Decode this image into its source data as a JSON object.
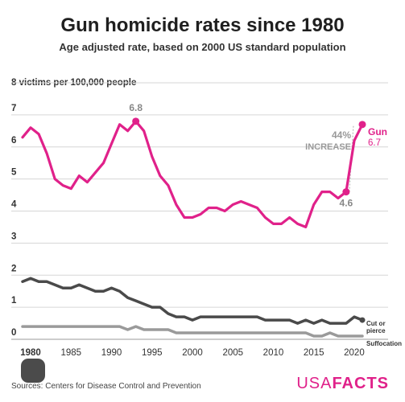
{
  "chart_data": {
    "type": "line",
    "title": "Gun homicide rates since 1980",
    "subtitle": "Age adjusted rate, based on 2000 US standard population",
    "ylabel": "victims per 100,000 people",
    "source": "Sources: Centers for Disease Control and Prevention",
    "brand": {
      "left": "USA",
      "right": "FACTS"
    },
    "ylim": [
      0,
      8
    ],
    "xlim": [
      1980,
      2021
    ],
    "y_ticks": [
      "0",
      "1",
      "2",
      "3",
      "4",
      "5",
      "6",
      "7",
      "8"
    ],
    "x_ticks": [
      "1980",
      "1985",
      "1990",
      "1995",
      "2000",
      "2005",
      "2010",
      "2015",
      "2020"
    ],
    "grid": true,
    "x": [
      1979,
      1980,
      1981,
      1982,
      1983,
      1984,
      1985,
      1986,
      1987,
      1988,
      1989,
      1990,
      1991,
      1992,
      1993,
      1994,
      1995,
      1996,
      1997,
      1998,
      1999,
      2000,
      2001,
      2002,
      2003,
      2004,
      2005,
      2006,
      2007,
      2008,
      2009,
      2010,
      2011,
      2012,
      2013,
      2014,
      2015,
      2016,
      2017,
      2018,
      2019,
      2020,
      2021
    ],
    "series": [
      {
        "name": "Gun",
        "color": "#e0218a",
        "end_label": "6.7",
        "values": [
          6.3,
          6.6,
          6.4,
          5.8,
          5.0,
          4.8,
          4.7,
          5.1,
          4.9,
          5.2,
          5.5,
          6.1,
          6.7,
          6.5,
          6.8,
          6.5,
          5.7,
          5.1,
          4.8,
          4.2,
          3.8,
          3.8,
          3.9,
          4.1,
          4.1,
          4.0,
          4.2,
          4.3,
          4.2,
          4.1,
          3.8,
          3.6,
          3.6,
          3.8,
          3.6,
          3.5,
          4.2,
          4.6,
          4.6,
          4.4,
          4.6,
          6.2,
          6.7
        ]
      },
      {
        "name": "Cut or pierce",
        "color": "#4a4a4a",
        "values": [
          1.8,
          1.9,
          1.8,
          1.8,
          1.7,
          1.6,
          1.6,
          1.7,
          1.6,
          1.5,
          1.5,
          1.6,
          1.5,
          1.3,
          1.2,
          1.1,
          1.0,
          1.0,
          0.8,
          0.7,
          0.7,
          0.6,
          0.7,
          0.7,
          0.7,
          0.7,
          0.7,
          0.7,
          0.7,
          0.7,
          0.6,
          0.6,
          0.6,
          0.6,
          0.5,
          0.6,
          0.5,
          0.6,
          0.5,
          0.5,
          0.5,
          0.7,
          0.6
        ]
      },
      {
        "name": "Suffocation",
        "color": "#9a9a9a",
        "values": [
          0.4,
          0.4,
          0.4,
          0.4,
          0.4,
          0.4,
          0.4,
          0.4,
          0.4,
          0.4,
          0.4,
          0.4,
          0.4,
          0.3,
          0.4,
          0.3,
          0.3,
          0.3,
          0.3,
          0.2,
          0.2,
          0.2,
          0.2,
          0.2,
          0.2,
          0.2,
          0.2,
          0.2,
          0.2,
          0.2,
          0.2,
          0.2,
          0.2,
          0.2,
          0.2,
          0.2,
          0.1,
          0.1,
          0.2,
          0.1,
          0.1,
          0.1,
          0.1
        ]
      }
    ],
    "annotations": {
      "peak": {
        "label": "6.8",
        "x": 1993,
        "y": 6.8
      },
      "low": {
        "label": "4.6",
        "x": 2019,
        "y": 4.6
      },
      "change": {
        "label_1": "44%",
        "label_2": "INCREASE",
        "from_x": 2019,
        "from_y": 4.6,
        "to_x": 2021,
        "to_y": 6.7
      }
    }
  }
}
